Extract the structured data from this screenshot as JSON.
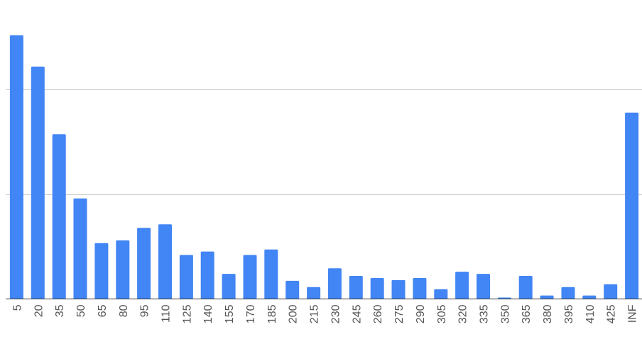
{
  "chart_data": {
    "type": "bar",
    "categories": [
      "5",
      "20",
      "35",
      "50",
      "65",
      "80",
      "95",
      "110",
      "125",
      "140",
      "155",
      "170",
      "185",
      "200",
      "215",
      "230",
      "245",
      "260",
      "275",
      "290",
      "305",
      "320",
      "335",
      "350",
      "365",
      "380",
      "395",
      "410",
      "425",
      "INF"
    ],
    "values": [
      37.8,
      33.3,
      23.6,
      14.4,
      8.0,
      8.4,
      10.2,
      10.7,
      6.3,
      6.8,
      3.6,
      6.3,
      7.1,
      2.6,
      1.7,
      4.4,
      3.3,
      3.0,
      2.7,
      3.0,
      1.4,
      3.9,
      3.6,
      0.2,
      3.3,
      0.5,
      1.7,
      0.5,
      2.1,
      26.7
    ],
    "ylim": [
      0,
      40
    ],
    "y_gridlines": [
      15,
      30
    ],
    "grid": true,
    "legend": "none",
    "colors": {
      "bar": "#4285f4",
      "grid": "#cccccc",
      "axis": "#333333",
      "tick_text": "#555555"
    }
  }
}
